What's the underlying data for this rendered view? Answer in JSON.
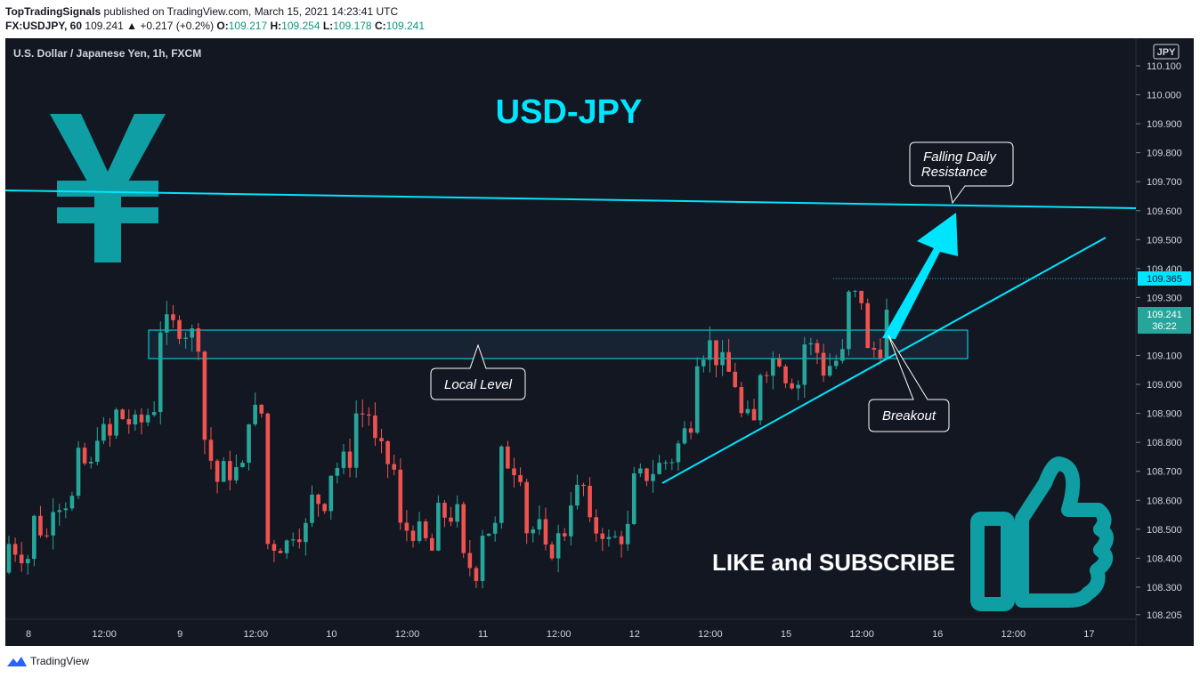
{
  "header": {
    "author": "TopTradingSignals",
    "published": "published on TradingView.com, March 15, 2021 14:23:41 UTC",
    "symbol": "FX:USDJPY, 60",
    "last": "109.241",
    "change": "▲ +0.217 (+0.2%)",
    "open_label": "O:",
    "open": "109.217",
    "high_label": "H:",
    "high": "109.254",
    "low_label": "L:",
    "low": "109.178",
    "close_label": "C:",
    "close": "109.241"
  },
  "legend": "U.S. Dollar / Japanese Yen, 1h, FXCM",
  "currency": "JPY",
  "annotations": {
    "title": "USD-JPY",
    "falling_line1": "Falling Daily",
    "falling_line2": "Resistance",
    "local_level": "Local Level",
    "breakout": "Breakout",
    "cta": "LIKE and SUBSCRIBE"
  },
  "price_tags": {
    "high_level": "109.365",
    "current": "109.241",
    "countdown": "36:22"
  },
  "footer": {
    "brand": "TradingView"
  },
  "colors": {
    "bg": "#131722",
    "up": "#26a69a",
    "down": "#ef5350",
    "accent": "#00e5ff",
    "teal_icon": "#0e9ea3"
  },
  "icons": [
    "yen-icon",
    "thumbs-up-icon",
    "tradingview-logo-icon"
  ],
  "chart_data": {
    "type": "candlestick",
    "title": "USD-JPY",
    "ylim": [
      108.205,
      110.15
    ],
    "y_ticks": [
      "110.100",
      "110.000",
      "109.900",
      "109.800",
      "109.700",
      "109.600",
      "109.500",
      "109.400",
      "109.300",
      "109.100",
      "109.000",
      "108.900",
      "108.800",
      "108.700",
      "108.600",
      "108.500",
      "108.400",
      "108.300",
      "108.205"
    ],
    "x_ticks": [
      "8",
      "12:00",
      "9",
      "12:00",
      "10",
      "12:00",
      "11",
      "12:00",
      "12",
      "12:00",
      "15",
      "12:00",
      "16",
      "12:00",
      "17"
    ],
    "ohlc_anchors": [
      [
        108.35,
        108.45
      ],
      [
        108.4,
        108.55
      ],
      [
        108.45,
        108.6
      ],
      [
        108.6,
        108.75
      ],
      [
        108.7,
        108.85
      ],
      [
        108.8,
        108.9
      ],
      [
        108.85,
        108.85
      ],
      [
        108.95,
        109.2
      ],
      [
        109.2,
        109.2
      ],
      [
        109.15,
        108.85
      ],
      [
        108.6,
        108.7
      ],
      [
        108.7,
        108.9
      ],
      [
        108.9,
        108.45
      ],
      [
        108.45,
        108.5
      ],
      [
        108.5,
        108.6
      ],
      [
        108.6,
        108.7
      ],
      [
        108.75,
        108.9
      ],
      [
        108.9,
        108.8
      ],
      [
        108.7,
        108.5
      ],
      [
        108.5,
        108.5
      ],
      [
        108.4,
        108.55
      ],
      [
        108.55,
        108.4
      ],
      [
        108.35,
        108.5
      ],
      [
        108.5,
        108.75
      ],
      [
        108.7,
        108.5
      ],
      [
        108.5,
        108.4
      ],
      [
        108.5,
        108.6
      ],
      [
        108.65,
        108.5
      ],
      [
        108.5,
        108.45
      ],
      [
        108.5,
        108.65
      ],
      [
        108.7,
        108.7
      ],
      [
        108.75,
        108.75
      ],
      [
        108.9,
        109.1
      ],
      [
        109.15,
        109.1
      ],
      [
        109.0,
        108.9
      ],
      [
        108.85,
        109.05
      ],
      [
        109.1,
        109.05
      ],
      [
        109.0,
        109.15
      ],
      [
        109.1,
        109.05
      ],
      [
        109.1,
        109.3
      ],
      [
        109.3,
        109.1
      ],
      [
        109.15,
        109.24
      ]
    ],
    "levels": {
      "falling_daily_resistance": [
        109.67,
        109.61
      ],
      "local_level_zone": [
        109.09,
        109.18
      ],
      "recent_high": 109.365,
      "current": 109.241
    }
  }
}
